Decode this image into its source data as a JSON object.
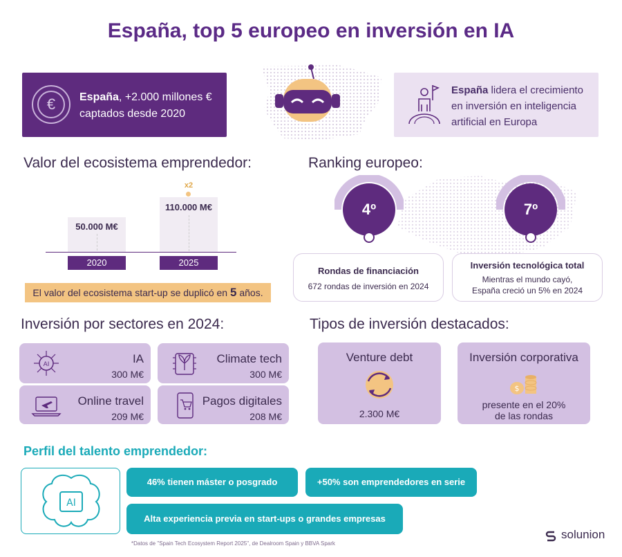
{
  "title": "España, top 5 europeo en inversión en IA",
  "intro_left": {
    "bold": "España",
    "text": ", +2.000 millones € captados desde 2020"
  },
  "intro_right": {
    "bold": "España",
    "text": " lidera el crecimiento en inversión en inteligencia artificial en Europa"
  },
  "ecosystem": {
    "heading": "Valor del ecosistema emprendedor:",
    "bars": [
      {
        "year": "2020",
        "value_label": "50.000 M€",
        "value": 50000
      },
      {
        "year": "2025",
        "value_label": "110.000 M€",
        "value": 110000
      }
    ],
    "multiplier": "x2",
    "note_pre": "El valor del ecosistema start-up se duplicó en ",
    "note_bold": "5",
    "note_post": " años."
  },
  "ranking": {
    "heading": "Ranking europeo:",
    "items": [
      {
        "rank": "4º",
        "title": "Rondas de financiación",
        "line1": "672 rondas de inversión en 2024",
        "line2": ""
      },
      {
        "rank": "7º",
        "title": "Inversión tecnológica total",
        "line1": "Mientras el mundo cayó,",
        "line2": "España creció un 5% en 2024"
      }
    ]
  },
  "sectors": {
    "heading": "Inversión por sectores en 2024:",
    "items": [
      {
        "name": "IA",
        "value": "300 M€",
        "icon": "ai-chip-icon"
      },
      {
        "name": "Climate tech",
        "value": "300 M€",
        "icon": "leaf-chip-icon"
      },
      {
        "name": "Online travel",
        "value": "209 M€",
        "icon": "laptop-plane-icon"
      },
      {
        "name": "Pagos digitales",
        "value": "208 M€",
        "icon": "phone-cart-icon"
      }
    ]
  },
  "investment_types": {
    "heading": "Tipos de inversión destacados:",
    "items": [
      {
        "title": "Venture debt",
        "line1": "2.300 M€",
        "line2": "",
        "icon": "recycle-arrows-icon"
      },
      {
        "title": "Inversión corporativa",
        "line1": "presente en el 20%",
        "line2": "de las rondas",
        "icon": "coins-icon"
      }
    ]
  },
  "talent": {
    "heading": "Perfil del talento emprendedor:",
    "items": [
      "46% tienen máster o posgrado",
      "+50% son emprendedores en serie",
      "Alta experiencia previa en start-ups o grandes empresas"
    ],
    "brain_label": "AI"
  },
  "footnote": "*Datos de \"Spain Tech Ecosystem Report 2025\", de Dealroom Spain y BBVA Spark",
  "logo": "solunion",
  "colors": {
    "primary": "#5e2b7e",
    "light": "#ebe1f1",
    "card": "#d3c0e2",
    "accent": "#f3c482",
    "teal": "#1aaab8"
  }
}
